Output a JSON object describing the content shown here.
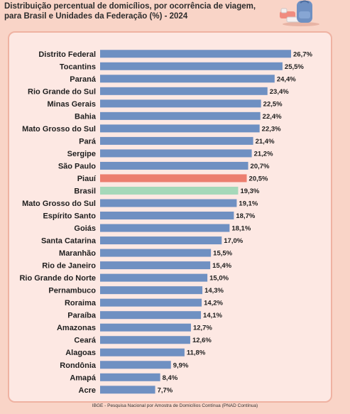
{
  "title_lines": [
    "Distribuição percentual de domicílios, por ocorrência de viagem,",
    "para Brasil e Unidades da Federação (%) - 2024"
  ],
  "source": "IBGE - Pesquisa Nacional por Amostra de Domicílios Contínua (PNAD Contínua)",
  "colors": {
    "default_bar": "#6f90c2",
    "highlight_bar": "#ec7e6f",
    "national_bar": "#a5d8b9",
    "background": "#f9d4c7",
    "card": "#fde8e3"
  },
  "chart_data": {
    "type": "bar",
    "orientation": "horizontal",
    "title": "Distribuição percentual de domicílios, por ocorrência de viagem, para Brasil e Unidades da Federação (%) - 2024",
    "categories": [
      "Distrito Federal",
      "Tocantins",
      "Paraná",
      "Rio Grande do Sul",
      "Minas Gerais",
      "Bahia",
      "Mato Grosso do Sul",
      "Pará",
      "Sergipe",
      "São Paulo",
      "Piauí",
      "Brasil",
      "Mato Grosso do Sul",
      "Espírito Santo",
      "Goiás",
      "Santa Catarina",
      "Maranhão",
      "Rio de Janeiro",
      "Rio Grande do Norte",
      "Pernambuco",
      "Roraima",
      "Paraíba",
      "Amazonas",
      "Ceará",
      "Alagoas",
      "Rondônia",
      "Amapá",
      "Acre"
    ],
    "values": [
      26.7,
      25.5,
      24.4,
      23.4,
      22.5,
      22.4,
      22.3,
      21.4,
      21.2,
      20.7,
      20.5,
      19.3,
      19.1,
      18.7,
      18.1,
      17.0,
      15.5,
      15.4,
      15.0,
      14.3,
      14.2,
      14.1,
      12.7,
      12.6,
      11.8,
      9.9,
      8.4,
      7.7
    ],
    "value_labels": [
      "26,7%",
      "25,5%",
      "24,4%",
      "23,4%",
      "22,5%",
      "22,4%",
      "22,3%",
      "21,4%",
      "21,2%",
      "20,7%",
      "20,5%",
      "19,3%",
      "19,1%",
      "18,7%",
      "18,1%",
      "17,0%",
      "15,5%",
      "15,4%",
      "15,0%",
      "14,3%",
      "14,2%",
      "14,1%",
      "12,7%",
      "12,6%",
      "11,8%",
      "9,9%",
      "8,4%",
      "7,7%"
    ],
    "highlight": {
      "Piauí": "highlight_bar",
      "Brasil": "national_bar"
    },
    "xlim": [
      0,
      26.7
    ],
    "grid": false,
    "legend": "none"
  }
}
